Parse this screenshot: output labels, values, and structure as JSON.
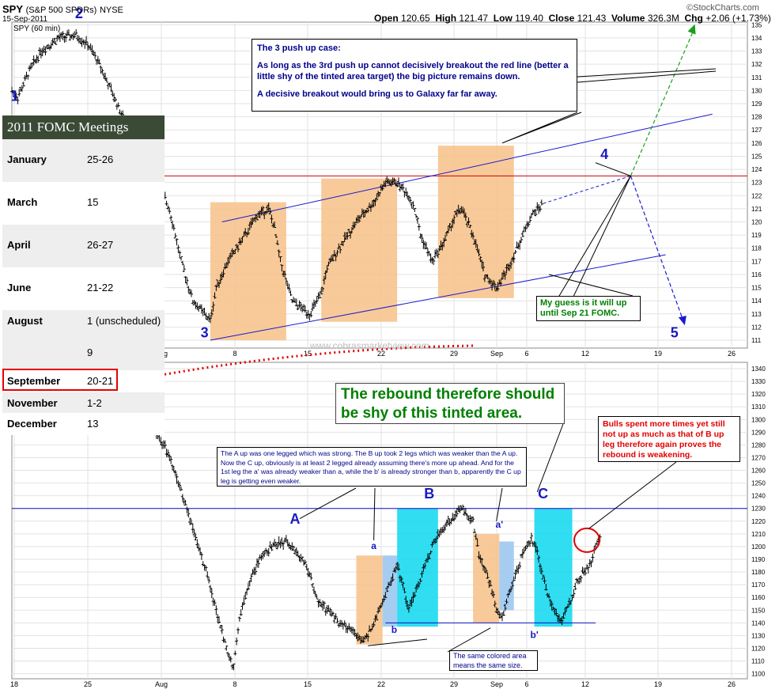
{
  "header": {
    "symbol": "SPY",
    "name": "(S&P 500 SPDRs)",
    "exchange": "NYSE",
    "date": "15-Sep-2011",
    "interval": "SPY (60 min)",
    "open_label": "Open",
    "open": "120.65",
    "high_label": "High",
    "high": "121.47",
    "low_label": "Low",
    "low": "119.40",
    "close_label": "Close",
    "close": "121.43",
    "volume_label": "Volume",
    "volume": "326.3M",
    "chg_label": "Chg",
    "chg": "+2.06 (+1.73%)",
    "logo": "©StockCharts.com"
  },
  "fomc": {
    "title": "2011 FOMC Meetings",
    "rows": [
      {
        "month": "January",
        "dates": "25-26"
      },
      {
        "month": "March",
        "dates": "15"
      },
      {
        "month": "April",
        "dates": "26-27"
      },
      {
        "month": "June",
        "dates": "21-22"
      },
      {
        "month": "August",
        "dates": "1 (unscheduled)"
      },
      {
        "month": "",
        "dates": "9"
      },
      {
        "month": "September",
        "dates": "20-21"
      },
      {
        "month": "November",
        "dates": "1-2"
      },
      {
        "month": "December",
        "dates": "13"
      }
    ]
  },
  "notes": {
    "push_title": "The 3 push up case:",
    "push_body": "As long as the 3rd push up cannot decisively breakout the red line (better a little shy of the tinted area target) the big picture remains down.",
    "push_breakout": "A decisive breakout would bring us to Galaxy far far away.",
    "guess": "My guess is it will up until Sep 21 FOMC.",
    "rebound": "The rebound therefore should be shy of this tinted area.",
    "abc": "The A up was one legged which was strong. The B up took 2 legs which was weaker than the A up. Now the C up, obviously is at least 2 legged already assuming there's more up ahead. And for the 1st leg the a' was already weaker than a, while the b' is already stronger than b, apparently the C up leg is getting even weaker.",
    "bulls": "Bulls spent more times yet still not up as much as that of B up leg therefore again proves the rebound is weakening.",
    "same_color": "The same colored area means the same size.",
    "watermark": "www.cobrasmarketview.com"
  },
  "chart_data": [
    {
      "type": "ohlc",
      "title": "SPY (60 min)",
      "x_ticks": [
        "18",
        "25",
        "Aug",
        "8",
        "15",
        "22",
        "29",
        "Sep",
        "6",
        "12",
        "19",
        "26"
      ],
      "y_ticks": [
        111,
        112,
        113,
        114,
        115,
        116,
        117,
        118,
        119,
        120,
        121,
        122,
        123,
        124,
        125,
        126,
        127,
        128,
        129,
        130,
        131,
        132,
        133,
        134,
        135
      ],
      "ylim": [
        110.4,
        135.2
      ],
      "grid": true,
      "path_knots": [
        [
          0,
          130
        ],
        [
          1,
          129.5
        ],
        [
          3,
          131.5
        ],
        [
          5,
          133
        ],
        [
          8,
          134
        ],
        [
          11,
          134.2
        ],
        [
          13,
          133.5
        ],
        [
          15,
          132
        ],
        [
          17,
          130
        ],
        [
          19,
          128
        ],
        [
          22,
          125
        ],
        [
          25,
          123
        ],
        [
          27,
          121
        ],
        [
          29,
          117
        ],
        [
          31,
          114
        ],
        [
          34,
          112.5
        ],
        [
          35,
          115
        ],
        [
          37,
          117
        ],
        [
          40,
          119
        ],
        [
          42,
          120.5
        ],
        [
          44,
          121
        ],
        [
          45,
          119.5
        ],
        [
          46,
          117
        ],
        [
          48,
          114
        ],
        [
          51,
          113
        ],
        [
          53,
          114.5
        ],
        [
          54,
          116.5
        ],
        [
          56,
          118
        ],
        [
          59,
          120
        ],
        [
          62,
          121.5
        ],
        [
          64,
          123
        ],
        [
          66,
          123
        ],
        [
          68,
          122
        ],
        [
          69,
          121
        ],
        [
          70,
          119
        ],
        [
          72,
          117
        ],
        [
          74,
          118.5
        ],
        [
          76,
          120.5
        ],
        [
          77,
          121
        ],
        [
          79,
          119
        ],
        [
          81,
          116
        ],
        [
          83,
          115
        ],
        [
          85,
          116.5
        ],
        [
          87,
          118.5
        ],
        [
          89,
          120.5
        ],
        [
          91,
          121.4
        ]
      ],
      "labels": [
        {
          "text": "1",
          "x": 0.5,
          "y": 129.2
        },
        {
          "text": "2",
          "x": 11.5,
          "y": 135.5
        },
        {
          "text": "3",
          "x": 33,
          "y": 111.2
        },
        {
          "text": "4",
          "x": 101.5,
          "y": 124.8
        },
        {
          "text": "5",
          "x": 113.5,
          "y": 111.2
        }
      ],
      "tinted_areas": [
        {
          "x0": 34,
          "x1": 47,
          "y0": 111,
          "y1": 121.5
        },
        {
          "x0": 53,
          "x1": 66,
          "y0": 112.4,
          "y1": 123.3
        },
        {
          "x0": 73,
          "x1": 86,
          "y0": 114.2,
          "y1": 125.8
        }
      ],
      "red_line": 123.5,
      "channel_upper": [
        [
          36,
          120
        ],
        [
          120,
          128.2
        ]
      ],
      "channel_lower": [
        [
          34,
          111
        ],
        [
          112,
          117.5
        ]
      ],
      "projection_up": [
        [
          106,
          123.5
        ],
        [
          117,
          134.8
        ]
      ],
      "projection_down": [
        [
          106,
          123.5
        ],
        [
          115,
          112.5
        ]
      ],
      "projection_join": [
        [
          91,
          121.4
        ],
        [
          106,
          123.5
        ]
      ],
      "wave4_lines": [
        [
          [
            100,
            124.5
          ],
          [
            106,
            123.5
          ],
          [
            93,
            113.8
          ]
        ],
        [
          [
            106,
            123.5
          ],
          [
            95,
            113.2
          ]
        ]
      ]
    },
    {
      "type": "ohlc",
      "title": "",
      "x_ticks": [
        "18",
        "25",
        "Aug",
        "8",
        "15",
        "22",
        "29",
        "Sep",
        "6",
        "12",
        "19",
        "26"
      ],
      "y_ticks": [
        1100,
        1110,
        1120,
        1130,
        1140,
        1150,
        1160,
        1170,
        1180,
        1190,
        1200,
        1210,
        1220,
        1230,
        1240,
        1250,
        1260,
        1270,
        1280,
        1290,
        1300,
        1310,
        1320,
        1330,
        1340
      ],
      "ylim": [
        1096,
        1345
      ],
      "grid": true,
      "path_knots": [
        [
          22,
          1300
        ],
        [
          25,
          1290
        ],
        [
          27,
          1270
        ],
        [
          29,
          1245
        ],
        [
          31,
          1215
        ],
        [
          33,
          1185
        ],
        [
          35,
          1150
        ],
        [
          37,
          1115
        ],
        [
          38,
          1105
        ],
        [
          39,
          1145
        ],
        [
          41,
          1175
        ],
        [
          43,
          1195
        ],
        [
          45,
          1200
        ],
        [
          47,
          1205
        ],
        [
          49,
          1195
        ],
        [
          51,
          1180
        ],
        [
          52,
          1160
        ],
        [
          54,
          1150
        ],
        [
          56,
          1140
        ],
        [
          58,
          1135
        ],
        [
          60,
          1125
        ],
        [
          61,
          1130
        ],
        [
          63,
          1150
        ],
        [
          65,
          1175
        ],
        [
          66,
          1185
        ],
        [
          67,
          1170
        ],
        [
          68,
          1150
        ],
        [
          70,
          1175
        ],
        [
          72,
          1200
        ],
        [
          74,
          1215
        ],
        [
          76,
          1225
        ],
        [
          77,
          1230
        ],
        [
          78,
          1225
        ],
        [
          79,
          1220
        ],
        [
          80,
          1195
        ],
        [
          82,
          1170
        ],
        [
          83,
          1150
        ],
        [
          84,
          1145
        ],
        [
          86,
          1175
        ],
        [
          88,
          1200
        ],
        [
          89,
          1205
        ],
        [
          90,
          1195
        ],
        [
          91,
          1175
        ],
        [
          92,
          1160
        ],
        [
          93,
          1150
        ],
        [
          94,
          1140
        ],
        [
          96,
          1160
        ],
        [
          97,
          1175
        ],
        [
          99,
          1185
        ],
        [
          100,
          1200
        ],
        [
          101,
          1210
        ]
      ],
      "labels": [
        {
          "text": "A",
          "x": 48.5,
          "y": 1218
        },
        {
          "text": "a",
          "x": 62,
          "y": 1198
        },
        {
          "text": "B",
          "x": 71.5,
          "y": 1238
        },
        {
          "text": "a'",
          "x": 83.5,
          "y": 1215
        },
        {
          "text": "C",
          "x": 91,
          "y": 1238
        },
        {
          "text": "b",
          "x": 65.5,
          "y": 1132
        },
        {
          "text": "b'",
          "x": 89.5,
          "y": 1128
        }
      ],
      "tinted_areas": [
        {
          "color": "orange",
          "x0": 59,
          "x1": 63.5,
          "y0": 1123,
          "y1": 1193
        },
        {
          "color": "blue",
          "x0": 63.5,
          "x1": 66,
          "y0": 1137,
          "y1": 1193
        },
        {
          "color": "cyan",
          "x0": 66,
          "x1": 73,
          "y0": 1137,
          "y1": 1230
        },
        {
          "color": "orange",
          "x0": 79,
          "x1": 83.5,
          "y0": 1140,
          "y1": 1210
        },
        {
          "color": "blue",
          "x0": 83.5,
          "x1": 86,
          "y0": 1150,
          "y1": 1204
        },
        {
          "color": "cyan",
          "x0": 89.5,
          "x1": 96,
          "y0": 1137,
          "y1": 1230
        }
      ],
      "blue_line": 1230,
      "support_line": 1140,
      "circle": [
        98.5,
        1205
      ]
    }
  ]
}
